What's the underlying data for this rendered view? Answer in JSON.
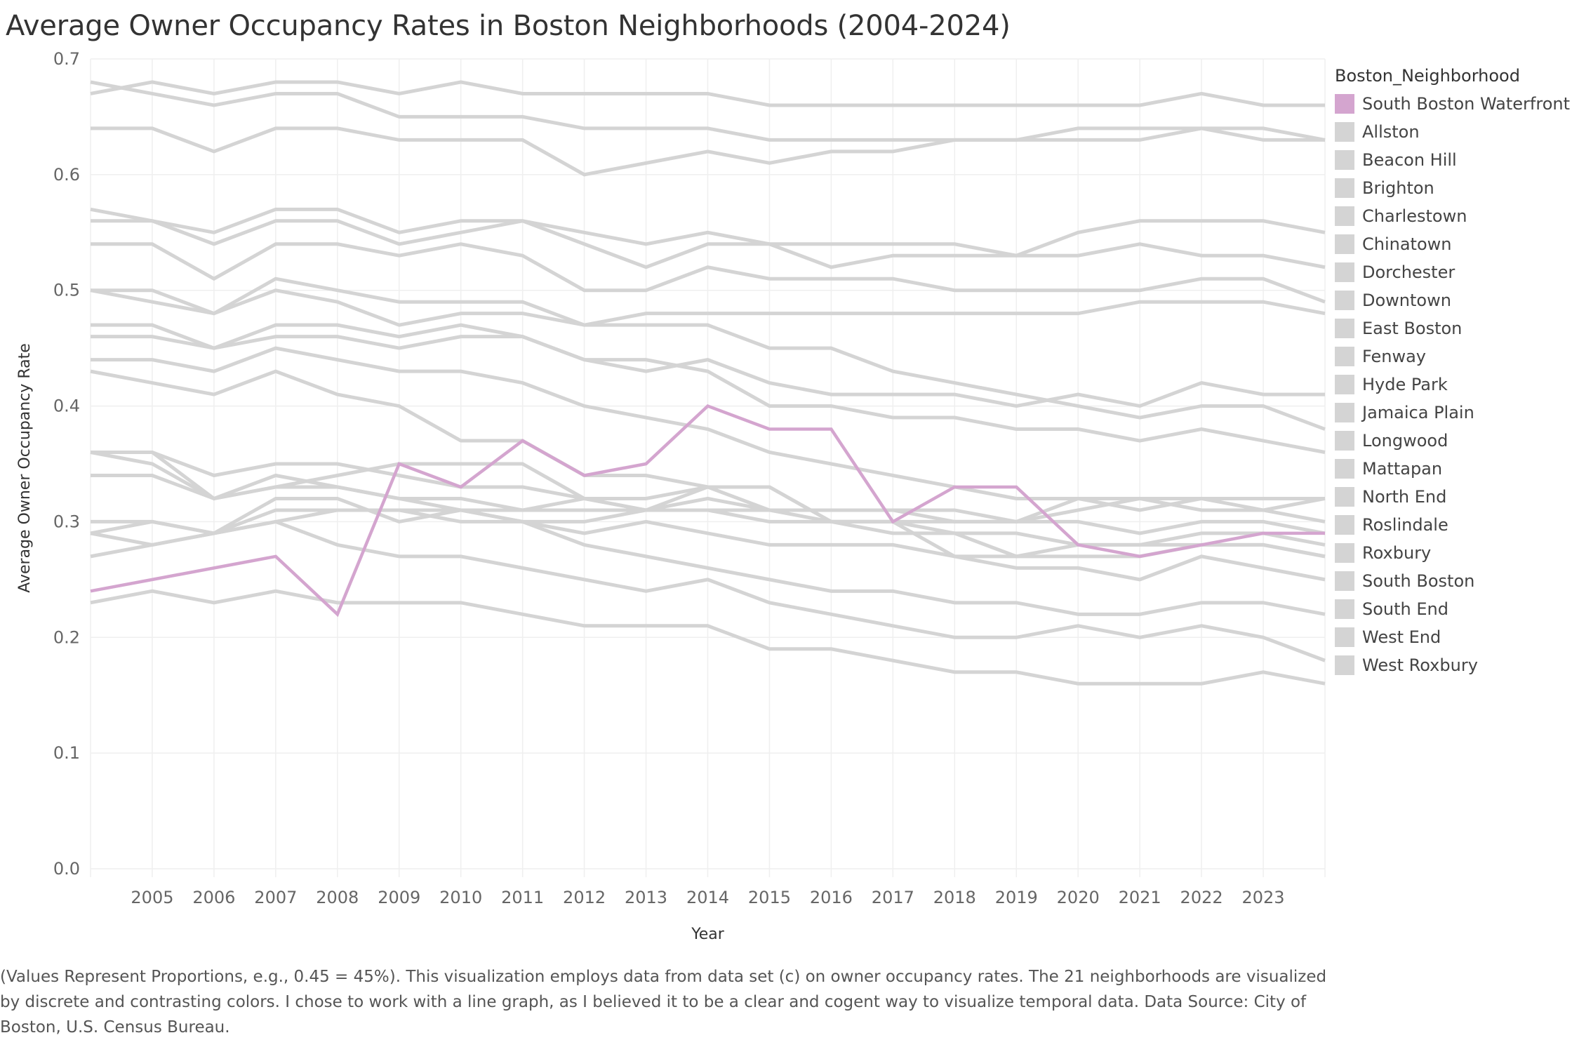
{
  "colors": {
    "highlight": "#d4a5cf",
    "muted": "#d4d4d4",
    "grid": "#efefef"
  },
  "chart_data": {
    "type": "line",
    "title": "Average Owner Occupancy Rates in Boston Neighborhoods (2004-2024)",
    "xlabel": "Year",
    "ylabel": "Average Owner Occupancy Rate",
    "x": [
      2004,
      2005,
      2006,
      2007,
      2008,
      2009,
      2010,
      2011,
      2012,
      2013,
      2014,
      2015,
      2016,
      2017,
      2018,
      2019,
      2020,
      2021,
      2022,
      2023,
      2024
    ],
    "x_tick_labels": [
      "2005",
      "2006",
      "2007",
      "2008",
      "2009",
      "2010",
      "2011",
      "2012",
      "2013",
      "2014",
      "2015",
      "2016",
      "2017",
      "2018",
      "2019",
      "2020",
      "2021",
      "2022",
      "2023"
    ],
    "xlim": [
      2004,
      2024
    ],
    "ylim": [
      0,
      0.7
    ],
    "y_ticks": [
      "0.0",
      "0.1",
      "0.2",
      "0.3",
      "0.4",
      "0.5",
      "0.6",
      "0.7"
    ],
    "grid": true,
    "legend_title": "Boston_Neighborhood",
    "legend_position": "right",
    "highlighted_series": "South Boston Waterfront",
    "series": [
      {
        "name": "South Boston Waterfront",
        "values": [
          0.24,
          0.25,
          0.26,
          0.27,
          0.22,
          0.35,
          0.33,
          0.37,
          0.34,
          0.35,
          0.4,
          0.38,
          0.38,
          0.3,
          0.33,
          0.33,
          0.28,
          0.27,
          0.28,
          0.29,
          0.29
        ]
      },
      {
        "name": "Allston",
        "values": [
          0.3,
          0.3,
          0.29,
          0.3,
          0.28,
          0.27,
          0.27,
          0.26,
          0.25,
          0.24,
          0.25,
          0.23,
          0.22,
          0.21,
          0.2,
          0.2,
          0.21,
          0.2,
          0.21,
          0.2,
          0.18
        ]
      },
      {
        "name": "Beacon Hill",
        "values": [
          0.23,
          0.24,
          0.23,
          0.24,
          0.23,
          0.23,
          0.23,
          0.22,
          0.21,
          0.21,
          0.21,
          0.19,
          0.19,
          0.18,
          0.17,
          0.17,
          0.16,
          0.16,
          0.16,
          0.17,
          0.16
        ]
      },
      {
        "name": "Brighton",
        "values": [
          0.27,
          0.28,
          0.29,
          0.3,
          0.31,
          0.31,
          0.31,
          0.3,
          0.28,
          0.27,
          0.26,
          0.25,
          0.24,
          0.24,
          0.23,
          0.23,
          0.22,
          0.22,
          0.23,
          0.23,
          0.22
        ]
      },
      {
        "name": "Charlestown",
        "values": [
          0.5,
          0.5,
          0.48,
          0.51,
          0.5,
          0.49,
          0.49,
          0.49,
          0.47,
          0.48,
          0.48,
          0.48,
          0.48,
          0.48,
          0.48,
          0.48,
          0.48,
          0.49,
          0.49,
          0.49,
          0.48
        ]
      },
      {
        "name": "Chinatown",
        "values": [
          0.36,
          0.35,
          0.32,
          0.34,
          0.33,
          0.32,
          0.31,
          0.3,
          0.29,
          0.3,
          0.29,
          0.28,
          0.28,
          0.28,
          0.27,
          0.26,
          0.26,
          0.25,
          0.27,
          0.26,
          0.25
        ]
      },
      {
        "name": "Dorchester",
        "values": [
          0.34,
          0.34,
          0.32,
          0.33,
          0.33,
          0.32,
          0.32,
          0.31,
          0.31,
          0.31,
          0.31,
          0.31,
          0.31,
          0.31,
          0.3,
          0.3,
          0.32,
          0.32,
          0.32,
          0.32,
          0.32
        ]
      },
      {
        "name": "Downtown",
        "values": [
          0.36,
          0.36,
          0.34,
          0.35,
          0.35,
          0.34,
          0.33,
          0.33,
          0.32,
          0.31,
          0.32,
          0.31,
          0.3,
          0.3,
          0.3,
          0.3,
          0.3,
          0.29,
          0.3,
          0.3,
          0.29
        ]
      },
      {
        "name": "East Boston",
        "values": [
          0.29,
          0.3,
          0.29,
          0.32,
          0.32,
          0.3,
          0.31,
          0.31,
          0.32,
          0.32,
          0.33,
          0.33,
          0.3,
          0.29,
          0.29,
          0.27,
          0.28,
          0.28,
          0.29,
          0.29,
          0.28
        ]
      },
      {
        "name": "Fenway",
        "values": [
          0.43,
          0.42,
          0.41,
          0.43,
          0.41,
          0.4,
          0.37,
          0.37,
          0.34,
          0.34,
          0.33,
          0.31,
          0.31,
          0.31,
          0.31,
          0.3,
          0.31,
          0.32,
          0.31,
          0.31,
          0.32
        ]
      },
      {
        "name": "Hyde Park",
        "values": [
          0.64,
          0.64,
          0.62,
          0.64,
          0.64,
          0.63,
          0.63,
          0.63,
          0.6,
          0.61,
          0.62,
          0.61,
          0.62,
          0.62,
          0.63,
          0.63,
          0.64,
          0.64,
          0.64,
          0.64,
          0.63
        ]
      },
      {
        "name": "Jamaica Plain",
        "values": [
          0.47,
          0.47,
          0.45,
          0.47,
          0.47,
          0.46,
          0.47,
          0.46,
          0.44,
          0.44,
          0.43,
          0.4,
          0.4,
          0.39,
          0.39,
          0.38,
          0.38,
          0.37,
          0.38,
          0.37,
          0.36
        ]
      },
      {
        "name": "Longwood",
        "values": [
          0.29,
          0.28,
          0.29,
          0.31,
          0.31,
          0.31,
          0.3,
          0.3,
          0.3,
          0.31,
          0.31,
          0.3,
          0.3,
          0.3,
          0.27,
          0.27,
          0.27,
          0.27,
          0.28,
          0.28,
          0.27
        ]
      },
      {
        "name": "Mattapan",
        "values": [
          0.5,
          0.49,
          0.48,
          0.5,
          0.49,
          0.47,
          0.48,
          0.48,
          0.47,
          0.47,
          0.47,
          0.45,
          0.45,
          0.43,
          0.42,
          0.41,
          0.4,
          0.39,
          0.4,
          0.4,
          0.38
        ]
      },
      {
        "name": "North End",
        "values": [
          0.36,
          0.36,
          0.32,
          0.33,
          0.34,
          0.35,
          0.35,
          0.35,
          0.32,
          0.31,
          0.33,
          0.33,
          0.3,
          0.3,
          0.29,
          0.29,
          0.28,
          0.28,
          0.28,
          0.28,
          0.27
        ]
      },
      {
        "name": "Roslindale",
        "values": [
          0.56,
          0.56,
          0.54,
          0.56,
          0.56,
          0.54,
          0.55,
          0.56,
          0.54,
          0.52,
          0.54,
          0.54,
          0.54,
          0.54,
          0.54,
          0.53,
          0.53,
          0.54,
          0.53,
          0.53,
          0.52
        ]
      },
      {
        "name": "Roxbury",
        "values": [
          0.46,
          0.46,
          0.45,
          0.46,
          0.46,
          0.45,
          0.46,
          0.46,
          0.44,
          0.43,
          0.44,
          0.42,
          0.41,
          0.41,
          0.41,
          0.4,
          0.41,
          0.4,
          0.42,
          0.41,
          0.41
        ]
      },
      {
        "name": "South Boston",
        "values": [
          0.44,
          0.44,
          0.43,
          0.45,
          0.44,
          0.43,
          0.43,
          0.42,
          0.4,
          0.39,
          0.38,
          0.36,
          0.35,
          0.34,
          0.33,
          0.32,
          0.32,
          0.31,
          0.32,
          0.31,
          0.3
        ]
      },
      {
        "name": "South End",
        "values": [
          0.54,
          0.54,
          0.51,
          0.54,
          0.54,
          0.53,
          0.54,
          0.53,
          0.5,
          0.5,
          0.52,
          0.51,
          0.51,
          0.51,
          0.5,
          0.5,
          0.5,
          0.5,
          0.51,
          0.51,
          0.49
        ]
      },
      {
        "name": "West End",
        "values": [
          0.68,
          0.67,
          0.66,
          0.67,
          0.67,
          0.65,
          0.65,
          0.65,
          0.64,
          0.64,
          0.64,
          0.63,
          0.63,
          0.63,
          0.63,
          0.63,
          0.63,
          0.63,
          0.64,
          0.63,
          0.63
        ]
      },
      {
        "name": "West Roxbury",
        "values": [
          0.67,
          0.68,
          0.67,
          0.68,
          0.68,
          0.67,
          0.68,
          0.67,
          0.67,
          0.67,
          0.67,
          0.66,
          0.66,
          0.66,
          0.66,
          0.66,
          0.66,
          0.66,
          0.67,
          0.66,
          0.66
        ]
      },
      {
        "name": "",
        "values": [
          0.57,
          0.56,
          0.55,
          0.57,
          0.57,
          0.55,
          0.56,
          0.56,
          0.55,
          0.54,
          0.55,
          0.54,
          0.52,
          0.53,
          0.53,
          0.53,
          0.55,
          0.56,
          0.56,
          0.56,
          0.55
        ]
      }
    ]
  },
  "caption": "(Values Represent Proportions, e.g., 0.45 = 45%). This visualization employs data from data set (c) on owner occupancy rates. The 21 neighborhoods are visualized by discrete and contrasting colors. I chose to work with a line graph, as I believed it to be a clear and cogent way to visualize temporal data. Data Source: City of Boston, U.S. Census Bureau."
}
